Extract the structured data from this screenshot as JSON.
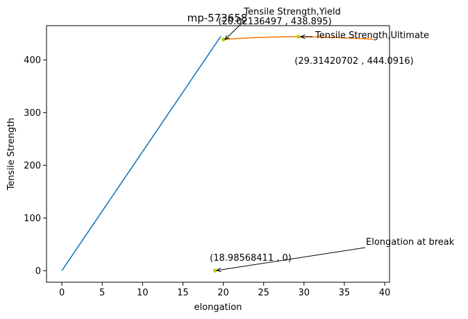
{
  "chart_data": {
    "type": "line",
    "title": "mp-573658",
    "xlabel": "elongation",
    "ylabel": "Tensile Strength",
    "xlim": [
      -1.9,
      40.6
    ],
    "ylim": [
      -22,
      465
    ],
    "xticks": [
      0,
      5,
      10,
      15,
      20,
      25,
      30,
      35,
      40
    ],
    "yticks": [
      0,
      100,
      200,
      300,
      400
    ],
    "grid": false,
    "colors": {
      "elastic": "#1f77b4",
      "plastic": "#ff7f0e",
      "markers": "#c8c800"
    },
    "series": [
      {
        "id": "elastic",
        "x": [
          0,
          19.7
        ],
        "y": [
          0,
          445
        ]
      },
      {
        "id": "plastic",
        "x": [
          20.02,
          22,
          24,
          26,
          28,
          29.31,
          31,
          33,
          35,
          37,
          38.6
        ],
        "y": [
          438.9,
          440.9,
          442.4,
          443.4,
          444.0,
          444.09,
          443.8,
          443.0,
          441.9,
          440.5,
          439.1
        ]
      }
    ],
    "points": [
      {
        "x": 20.02136497,
        "y": 438.895
      },
      {
        "x": 29.31420702,
        "y": 444.0916
      },
      {
        "x": 18.98568411,
        "y": 0
      }
    ],
    "annotations": [
      {
        "label": "Tensile Strength,Yield",
        "value_label": "(20.02136497 , 438.895)",
        "target": {
          "x": 20.02136497,
          "y": 438.895
        }
      },
      {
        "label": "Tensile Strength,Ultimate",
        "value_label": "(29.31420702 , 444.0916)",
        "target": {
          "x": 29.31420702,
          "y": 444.0916
        }
      },
      {
        "label": "Elongation at break",
        "value_label": "(18.98568411 , 0)",
        "target": {
          "x": 18.98568411,
          "y": 0
        }
      }
    ]
  }
}
